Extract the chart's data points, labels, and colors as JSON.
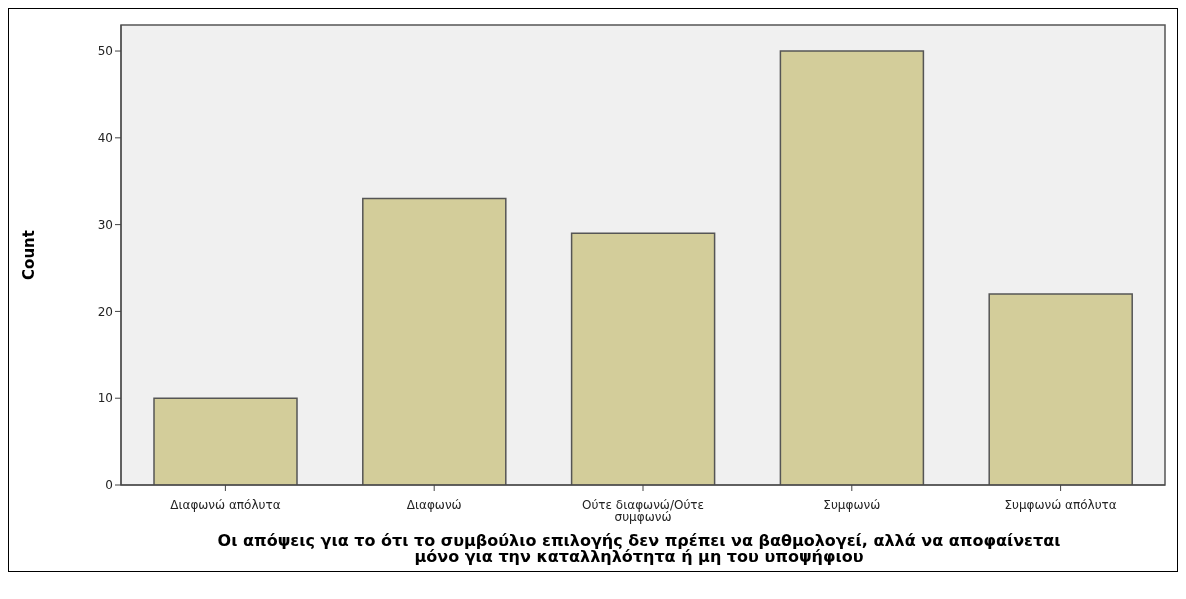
{
  "chart_data": {
    "type": "bar",
    "categories": [
      "Διαφωνώ απόλυτα",
      "Διαφωνώ",
      "Ούτε διαφωνώ/Ούτε συμφωνώ",
      "Συμφωνώ",
      "Συμφωνώ απόλυτα"
    ],
    "values": [
      10,
      33,
      29,
      50,
      22
    ],
    "color": "#d3cd9a",
    "xlabel": "Οι απόψεις για το ότι το συμβούλιο επιλογής δεν πρέπει να βαθμολογεί, αλλά να αποφαίνεται μόνο για την καταλληλότητα ή μη του υποψήφιου",
    "ylabel": "Count",
    "ylim": [
      0,
      53
    ],
    "yticks": [
      0,
      10,
      20,
      30,
      40,
      50
    ],
    "grid": false,
    "legend": false
  }
}
